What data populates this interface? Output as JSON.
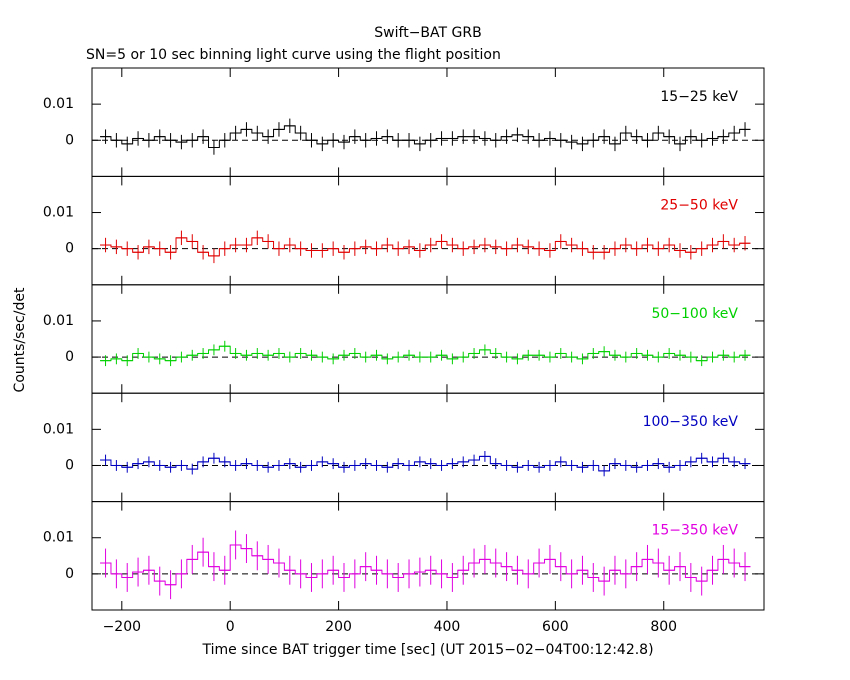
{
  "title": "Swift−BAT GRB",
  "subtitle": "SN=5 or 10 sec binning light curve using the flight position",
  "ylabel": "Counts/sec/det",
  "xlabel": "Time since BAT trigger time [sec] (UT 2015−02−04T00:12:42.8)",
  "xlim": [
    -255,
    985
  ],
  "xticks": [
    {
      "value": -200,
      "label": "−200"
    },
    0,
    200,
    400,
    600,
    800
  ],
  "x": [
    -230,
    -210,
    -190,
    -170,
    -150,
    -130,
    -110,
    -90,
    -70,
    -50,
    -30,
    -10,
    10,
    30,
    50,
    70,
    90,
    110,
    130,
    150,
    170,
    190,
    210,
    230,
    250,
    270,
    290,
    310,
    330,
    350,
    370,
    390,
    410,
    430,
    450,
    470,
    490,
    510,
    530,
    550,
    570,
    590,
    610,
    630,
    650,
    670,
    690,
    710,
    730,
    750,
    770,
    790,
    810,
    830,
    850,
    870,
    890,
    910,
    930,
    950
  ],
  "chart_data": [
    {
      "type": "line",
      "name": "15−25 keV",
      "color": "#000000",
      "ylim": [
        -0.01,
        0.02
      ],
      "yticks": [
        0,
        0.01
      ],
      "error": 0.002,
      "values": [
        0.001,
        0,
        -0.001,
        0.0005,
        0,
        0.001,
        0,
        -0.0005,
        0,
        0.001,
        -0.002,
        0,
        0.002,
        0.003,
        0.002,
        0.001,
        0.003,
        0.004,
        0.002,
        0,
        -0.001,
        0,
        -0.0005,
        0.001,
        0,
        0.0005,
        0.001,
        0,
        0,
        -0.001,
        0,
        0.0005,
        0.0005,
        0.001,
        0.001,
        0.0005,
        0,
        0.001,
        0.0015,
        0.001,
        0,
        0.0005,
        0,
        -0.0005,
        -0.001,
        0,
        0.001,
        -0.001,
        0.002,
        0.001,
        0,
        0.002,
        0.001,
        -0.001,
        0.001,
        0,
        0.0005,
        0.001,
        0.002,
        0.003
      ]
    },
    {
      "type": "line",
      "name": "25−50 keV",
      "color": "#e00000",
      "ylim": [
        -0.01,
        0.02
      ],
      "yticks": [
        0,
        0.01
      ],
      "error": 0.002,
      "values": [
        0.001,
        0.0005,
        0,
        -0.001,
        0.0005,
        0,
        -0.001,
        0.003,
        0.002,
        -0.001,
        -0.002,
        0,
        0.001,
        0.001,
        0.003,
        0.002,
        0,
        0.001,
        0,
        -0.0005,
        -0.0005,
        0,
        -0.001,
        0,
        0.0005,
        0,
        0.001,
        0,
        0.0005,
        -0.0005,
        0.001,
        0.002,
        0.001,
        0,
        0.0005,
        0.001,
        0.0005,
        0,
        0.001,
        0.0005,
        0,
        -0.0005,
        0.002,
        0.001,
        0,
        -0.001,
        -0.001,
        0,
        0.001,
        0,
        0.001,
        0,
        0.001,
        -0.0005,
        -0.001,
        0,
        0.001,
        0.002,
        0.001,
        0.0015
      ]
    },
    {
      "type": "line",
      "name": "50−100 keV",
      "color": "#00d000",
      "ylim": [
        -0.01,
        0.02
      ],
      "yticks": [
        0,
        0.01
      ],
      "error": 0.0015,
      "values": [
        -0.001,
        -0.0005,
        -0.001,
        0.001,
        0,
        -0.0005,
        -0.001,
        0,
        0.0005,
        0.001,
        0.002,
        0.003,
        0.001,
        0.0005,
        0.001,
        0.0005,
        0.001,
        0,
        0.001,
        0.0005,
        0,
        -0.0005,
        0.0005,
        0.001,
        0,
        0.0005,
        -0.0005,
        0,
        0.0005,
        0,
        0,
        0.0005,
        -0.0005,
        0,
        0.001,
        0.002,
        0.001,
        0,
        -0.0005,
        0.0005,
        0.0005,
        0,
        0.001,
        0,
        -0.0005,
        0.001,
        0.0015,
        0.0005,
        0,
        0.001,
        0.0005,
        0,
        0.001,
        0.0005,
        0,
        -0.001,
        0,
        0.0005,
        0,
        0.0005
      ]
    },
    {
      "type": "line",
      "name": "100−350 keV",
      "color": "#0000c0",
      "ylim": [
        -0.01,
        0.02
      ],
      "yticks": [
        0,
        0.01
      ],
      "error": 0.0015,
      "values": [
        0.0015,
        0,
        -0.0005,
        0.0005,
        0.001,
        0,
        -0.0005,
        0,
        -0.001,
        0.001,
        0.002,
        0.001,
        0,
        0.0005,
        0,
        -0.0005,
        0,
        0.0005,
        -0.0005,
        0,
        0.001,
        0.0005,
        -0.0005,
        0,
        0.0005,
        0,
        -0.0005,
        0.0005,
        0,
        0.001,
        0.0005,
        0,
        0.0005,
        0.001,
        0.0015,
        0.0025,
        0.0005,
        0,
        -0.0005,
        0,
        -0.0005,
        0,
        0.001,
        0,
        -0.0005,
        0,
        -0.0015,
        0.0005,
        0,
        -0.0005,
        0,
        0.0005,
        -0.0005,
        0,
        0.001,
        0.002,
        0.001,
        0.002,
        0.001,
        0.0005
      ]
    },
    {
      "type": "line",
      "name": "15−350 keV",
      "color": "#e000e0",
      "ylim": [
        -0.01,
        0.02
      ],
      "yticks": [
        0,
        0.01
      ],
      "error": 0.004,
      "values": [
        0.003,
        0,
        -0.001,
        0.0005,
        0.001,
        -0.002,
        -0.003,
        0,
        0.004,
        0.006,
        0.002,
        0.001,
        0.008,
        0.007,
        0.005,
        0.004,
        0.003,
        0.001,
        0,
        -0.001,
        0,
        0.001,
        -0.001,
        0,
        0.002,
        0.001,
        0,
        -0.001,
        0,
        0.0005,
        0.001,
        0,
        -0.001,
        0.001,
        0.003,
        0.004,
        0.003,
        0.002,
        0.001,
        0,
        0.003,
        0.004,
        0.002,
        0,
        0.001,
        -0.001,
        -0.002,
        0.001,
        0,
        0.002,
        0.004,
        0.003,
        0.001,
        0.002,
        -0.001,
        -0.002,
        0.001,
        0.004,
        0.003,
        0.002
      ]
    }
  ]
}
